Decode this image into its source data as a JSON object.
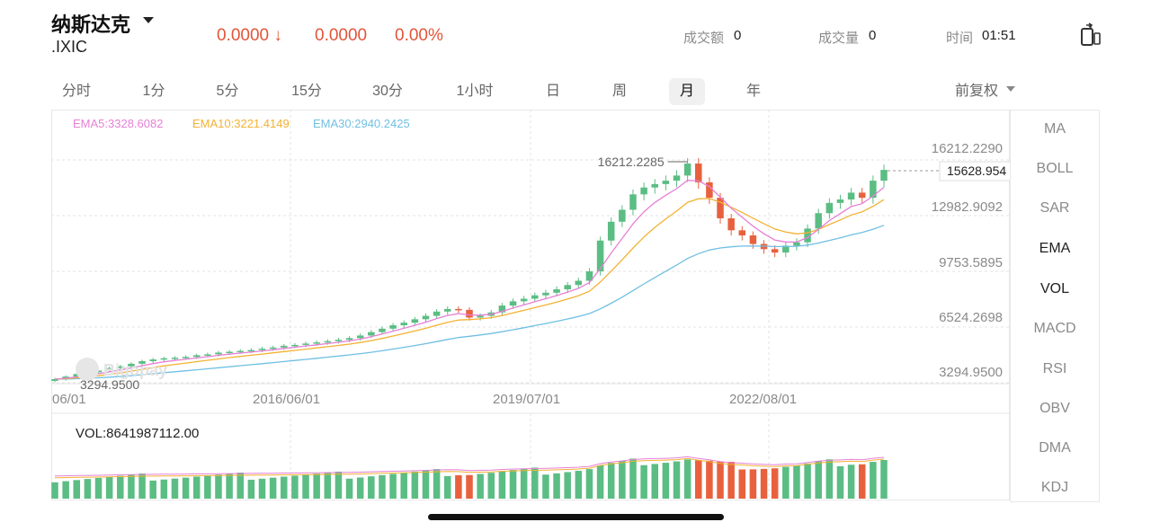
{
  "header": {
    "title": "纳斯达克",
    "symbol": ".IXIC",
    "price": "0.0000",
    "change": "0.0000",
    "change_pct": "0.00%",
    "turnover_label": "成交额",
    "turnover_value": "0",
    "volume_label": "成交量",
    "volume_value": "0",
    "time_label": "时间",
    "time_value": "01:51"
  },
  "periods": [
    "分时",
    "1分",
    "5分",
    "15分",
    "30分",
    "1小时",
    "日",
    "周",
    "月",
    "年"
  ],
  "active_period": "月",
  "adjust": "前复权",
  "indicators": [
    "MA",
    "BOLL",
    "SAR",
    "EMA",
    "VOL",
    "MACD",
    "RSI",
    "OBV",
    "DMA",
    "KDJ"
  ],
  "active_indicators": [
    "EMA",
    "VOL"
  ],
  "ema_legend": [
    {
      "label": "EMA5:3328.6082",
      "color": "#e680d6"
    },
    {
      "label": "EMA10:3221.4149",
      "color": "#f2b233"
    },
    {
      "label": "EMA30:2940.2425",
      "color": "#6fbfe3"
    }
  ],
  "price_axis": [
    "16212.2290",
    "12982.9092",
    "9753.5895",
    "6524.2698",
    "3294.9500"
  ],
  "current_price_tag": "15628.954",
  "high_marker": "16212.2285",
  "low_marker": "3294.9500",
  "x_axis": [
    "06/01",
    "2016/06/01",
    "2019/07/01",
    "2022/08/01"
  ],
  "vol_label": "VOL:8641987112.00",
  "watermark": "Bigopay",
  "colors": {
    "up": "#5bbd83",
    "down": "#e8613e",
    "accent": "#e2553a"
  },
  "chart_data": {
    "type": "candlestick",
    "ylim": [
      3294.95,
      16212.229
    ],
    "series_close": [
      3400,
      3550,
      3700,
      3800,
      3900,
      4050,
      4150,
      4300,
      4450,
      4550,
      4620,
      4650,
      4700,
      4800,
      4850,
      4950,
      5000,
      5050,
      5100,
      5180,
      5250,
      5350,
      5400,
      5480,
      5550,
      5620,
      5700,
      5800,
      5950,
      6150,
      6350,
      6550,
      6700,
      6900,
      7100,
      7350,
      7500,
      7450,
      7000,
      7100,
      7300,
      7700,
      7950,
      8100,
      8300,
      8450,
      8650,
      8900,
      9150,
      9700,
      11500,
      12600,
      13300,
      14200,
      14600,
      14800,
      15000,
      15300,
      16000,
      14900,
      14000,
      12800,
      12100,
      11800,
      11300,
      11000,
      10800,
      11200,
      11400,
      12200,
      13100,
      13700,
      13900,
      14300,
      14000,
      15000,
      15630
    ]
  }
}
